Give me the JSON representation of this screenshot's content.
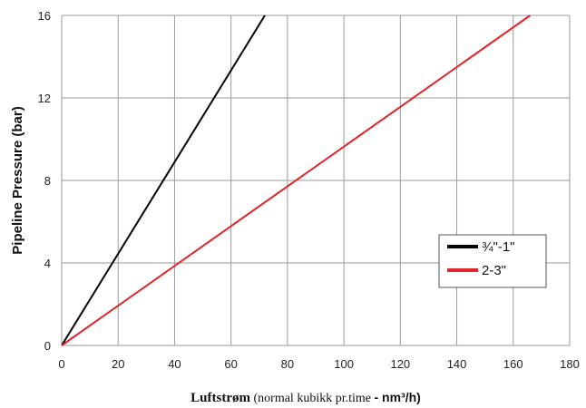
{
  "chart_data": {
    "type": "line",
    "xlabel": {
      "bold": "Luftstrøm",
      "normal": " (normal kubikk pr.time ",
      "unit": "- nm³/h)"
    },
    "ylabel": "Pipeline Pressure (bar)",
    "xlim": [
      0,
      180
    ],
    "ylim": [
      0,
      16
    ],
    "xticks": [
      0,
      20,
      40,
      60,
      80,
      100,
      120,
      140,
      160,
      180
    ],
    "yticks": [
      0,
      4,
      8,
      12,
      16
    ],
    "grid": true,
    "legend_position": "right, lower-middle",
    "series": [
      {
        "name": "¾\"-1\"",
        "color": "#000000",
        "points": [
          [
            0,
            0
          ],
          [
            72,
            16
          ]
        ]
      },
      {
        "name": "2-3\"",
        "color": "#e0242a",
        "points": [
          [
            0,
            0
          ],
          [
            166,
            16
          ]
        ]
      }
    ]
  }
}
